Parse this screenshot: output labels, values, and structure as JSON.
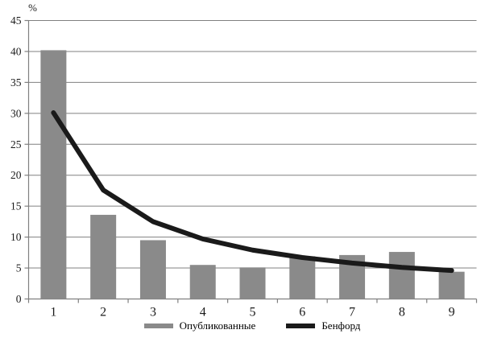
{
  "chart_data": {
    "type": "bar",
    "ylabel": "%",
    "ylim": [
      0,
      45
    ],
    "ytick_step": 5,
    "grid": true,
    "legend_position": "bottom",
    "categories": [
      "1",
      "2",
      "3",
      "4",
      "5",
      "6",
      "7",
      "8",
      "9"
    ],
    "series": [
      {
        "name": "Опубликованные",
        "type": "bar",
        "color": "#8a8a8a",
        "values": [
          40.2,
          13.6,
          9.5,
          5.5,
          5.1,
          6.9,
          7.1,
          7.6,
          4.4
        ]
      },
      {
        "name": "Бенфорд",
        "type": "line",
        "color": "#1a1a1a",
        "values": [
          30.1,
          17.6,
          12.5,
          9.7,
          7.9,
          6.7,
          5.8,
          5.1,
          4.6
        ]
      }
    ],
    "colors": {
      "grid": "#808080",
      "axis": "#808080",
      "text": "#1a1a1a",
      "background": "#ffffff"
    }
  }
}
